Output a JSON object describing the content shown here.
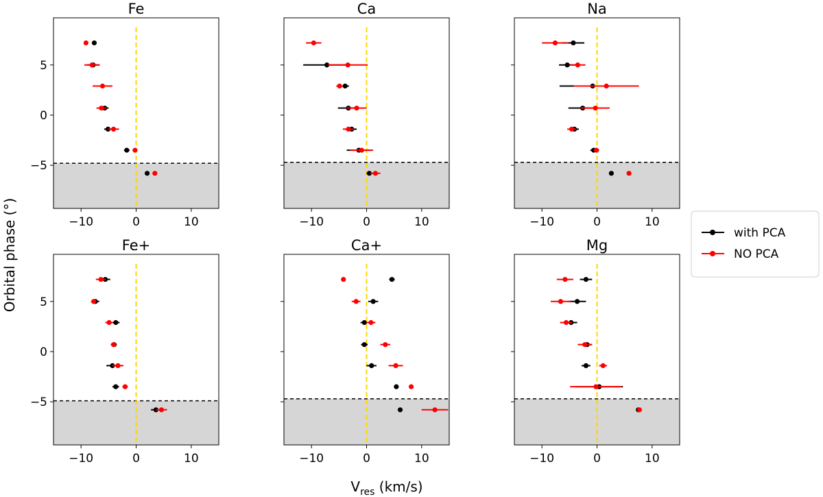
{
  "figure": {
    "ylabel": "Orbital phase (°)",
    "xlabel_main": "V",
    "xlabel_sub": "res",
    "xlabel_unit": " (km/s)"
  },
  "legend": {
    "items": [
      {
        "label": "with PCA",
        "color": "#000000"
      },
      {
        "label": "NO PCA",
        "color": "#ff0000"
      }
    ]
  },
  "chart_data": [
    {
      "type": "scatter",
      "title": "Fe",
      "xlim": [
        -15,
        15
      ],
      "ylim": [
        -9.3,
        9.7
      ],
      "xticks": [
        -10,
        0,
        10
      ],
      "yticks": [
        5,
        0,
        -5
      ],
      "vline": 0,
      "hline": -4.8,
      "series": [
        {
          "name": "with PCA",
          "color": "#000000",
          "points": [
            {
              "x": -7.6,
              "xerr": 0,
              "y": 7.2
            },
            {
              "x": -7.8,
              "xerr": 1.1,
              "y": 5.0
            },
            {
              "x": -5.7,
              "xerr": 0.7,
              "y": 0.7
            },
            {
              "x": -5.1,
              "xerr": 0.7,
              "y": -1.4
            },
            {
              "x": -1.7,
              "xerr": 0.5,
              "y": -3.5
            },
            {
              "x": 2.0,
              "xerr": 0,
              "y": -5.8
            }
          ]
        },
        {
          "name": "NO PCA",
          "color": "#ff0000",
          "points": [
            {
              "x": -9.1,
              "xerr": 0,
              "y": 7.2
            },
            {
              "x": -8.0,
              "xerr": 1.4,
              "y": 5.0
            },
            {
              "x": -6.1,
              "xerr": 1.8,
              "y": 2.9
            },
            {
              "x": -6.3,
              "xerr": 0.9,
              "y": 0.7
            },
            {
              "x": -4.1,
              "xerr": 1.0,
              "y": -1.4
            },
            {
              "x": -0.2,
              "xerr": 0.4,
              "y": -3.5
            },
            {
              "x": 3.4,
              "xerr": 0.4,
              "y": -5.8
            }
          ]
        }
      ]
    },
    {
      "type": "scatter",
      "title": "Ca",
      "xlim": [
        -15,
        15
      ],
      "ylim": [
        -9.3,
        9.7
      ],
      "xticks": [
        -10,
        0,
        10
      ],
      "yticks": [
        5,
        0,
        -5
      ],
      "vline": 0,
      "hline": -4.7,
      "series": [
        {
          "name": "with PCA",
          "color": "#000000",
          "points": [
            {
              "x": -7.2,
              "xerr": 4.3,
              "y": 5.0
            },
            {
              "x": -3.9,
              "xerr": 0.7,
              "y": 2.9
            },
            {
              "x": -3.3,
              "xerr": 1.9,
              "y": 0.7
            },
            {
              "x": -2.7,
              "xerr": 0.9,
              "y": -1.4
            },
            {
              "x": -1.4,
              "xerr": 2.2,
              "y": -3.5
            },
            {
              "x": 0.5,
              "xerr": 0.5,
              "y": -5.8
            }
          ]
        },
        {
          "name": "NO PCA",
          "color": "#ff0000",
          "points": [
            {
              "x": -9.6,
              "xerr": 1.4,
              "y": 7.2
            },
            {
              "x": -3.4,
              "xerr": 3.6,
              "y": 5.0
            },
            {
              "x": -4.9,
              "xerr": 0.6,
              "y": 2.9
            },
            {
              "x": -1.8,
              "xerr": 1.8,
              "y": 0.7
            },
            {
              "x": -3.3,
              "xerr": 1.0,
              "y": -1.4
            },
            {
              "x": -0.9,
              "xerr": 2.1,
              "y": -3.5
            },
            {
              "x": 1.6,
              "xerr": 0.9,
              "y": -5.8
            }
          ]
        }
      ]
    },
    {
      "type": "scatter",
      "title": "Na",
      "xlim": [
        -15,
        15
      ],
      "ylim": [
        -9.3,
        9.7
      ],
      "xticks": [
        -10,
        0,
        10
      ],
      "yticks": [
        5,
        0,
        -5
      ],
      "vline": 0,
      "hline": -4.7,
      "series": [
        {
          "name": "with PCA",
          "color": "#000000",
          "points": [
            {
              "x": -4.3,
              "xerr": 2.0,
              "y": 7.2
            },
            {
              "x": -5.4,
              "xerr": 1.5,
              "y": 5.0
            },
            {
              "x": -0.8,
              "xerr": 6.0,
              "y": 2.9
            },
            {
              "x": -2.6,
              "xerr": 2.6,
              "y": 0.7
            },
            {
              "x": -4.1,
              "xerr": 0.8,
              "y": -1.4
            },
            {
              "x": -0.6,
              "xerr": 0.6,
              "y": -3.5
            },
            {
              "x": 2.6,
              "xerr": 0,
              "y": -5.8
            }
          ]
        },
        {
          "name": "NO PCA",
          "color": "#ff0000",
          "points": [
            {
              "x": -7.6,
              "xerr": 2.4,
              "y": 7.2
            },
            {
              "x": -3.5,
              "xerr": 1.4,
              "y": 5.0
            },
            {
              "x": 1.7,
              "xerr": 5.9,
              "y": 2.9
            },
            {
              "x": -0.3,
              "xerr": 2.6,
              "y": 0.7
            },
            {
              "x": -4.6,
              "xerr": 0.8,
              "y": -1.4
            },
            {
              "x": -0.1,
              "xerr": 0.5,
              "y": -3.5
            },
            {
              "x": 5.8,
              "xerr": 0,
              "y": -5.8
            }
          ]
        }
      ]
    },
    {
      "type": "scatter",
      "title": "Fe+",
      "xlim": [
        -15,
        15
      ],
      "ylim": [
        -9.3,
        9.7
      ],
      "xticks": [
        -10,
        0,
        10
      ],
      "yticks": [
        5,
        0,
        -5
      ],
      "vline": 0,
      "hline": -4.9,
      "series": [
        {
          "name": "with PCA",
          "color": "#000000",
          "points": [
            {
              "x": -5.6,
              "xerr": 0.9,
              "y": 7.2
            },
            {
              "x": -7.4,
              "xerr": 0.7,
              "y": 5.0
            },
            {
              "x": -3.7,
              "xerr": 0.7,
              "y": 2.9
            },
            {
              "x": -4.0,
              "xerr": 0.5,
              "y": 0.7
            },
            {
              "x": -4.3,
              "xerr": 1.1,
              "y": -1.4
            },
            {
              "x": -3.7,
              "xerr": 0.6,
              "y": -3.5
            },
            {
              "x": 3.6,
              "xerr": 0.9,
              "y": -5.8
            }
          ]
        },
        {
          "name": "NO PCA",
          "color": "#ff0000",
          "points": [
            {
              "x": -6.4,
              "xerr": 0.9,
              "y": 7.2
            },
            {
              "x": -7.7,
              "xerr": 0.5,
              "y": 5.0
            },
            {
              "x": -4.9,
              "xerr": 0.7,
              "y": 2.9
            },
            {
              "x": -4.1,
              "xerr": 0.5,
              "y": 0.7
            },
            {
              "x": -3.3,
              "xerr": 1.0,
              "y": -1.4
            },
            {
              "x": -2.0,
              "xerr": 0.5,
              "y": -3.5
            },
            {
              "x": 4.6,
              "xerr": 1.0,
              "y": -5.8
            }
          ]
        }
      ]
    },
    {
      "type": "scatter",
      "title": "Ca+",
      "xlim": [
        -15,
        15
      ],
      "ylim": [
        -9.3,
        9.7
      ],
      "xticks": [
        -10,
        0,
        10
      ],
      "yticks": [],
      "vline": 0,
      "hline": -4.7,
      "series": [
        {
          "name": "with PCA",
          "color": "#000000",
          "points": [
            {
              "x": 4.6,
              "xerr": 0.5,
              "y": 7.2
            },
            {
              "x": 1.2,
              "xerr": 0.9,
              "y": 5.0
            },
            {
              "x": -0.4,
              "xerr": 0.7,
              "y": 2.9
            },
            {
              "x": -0.4,
              "xerr": 0.6,
              "y": 0.7
            },
            {
              "x": 0.9,
              "xerr": 0.9,
              "y": -1.4
            },
            {
              "x": 5.4,
              "xerr": 0,
              "y": -3.5
            },
            {
              "x": 6.1,
              "xerr": 0,
              "y": -5.8
            }
          ]
        },
        {
          "name": "NO PCA",
          "color": "#ff0000",
          "points": [
            {
              "x": -4.2,
              "xerr": 0,
              "y": 7.2
            },
            {
              "x": -1.9,
              "xerr": 0.8,
              "y": 5.0
            },
            {
              "x": 0.8,
              "xerr": 0.8,
              "y": 2.9
            },
            {
              "x": 3.4,
              "xerr": 0.9,
              "y": 0.7
            },
            {
              "x": 5.3,
              "xerr": 1.3,
              "y": -1.4
            },
            {
              "x": 8.1,
              "xerr": 0,
              "y": -3.5
            },
            {
              "x": 12.4,
              "xerr": 2.4,
              "y": -5.8
            }
          ]
        }
      ]
    },
    {
      "type": "scatter",
      "title": "Mg",
      "xlim": [
        -15,
        15
      ],
      "ylim": [
        -9.3,
        9.7
      ],
      "xticks": [
        -10,
        0,
        10
      ],
      "yticks": [],
      "vline": 0,
      "hline": -4.7,
      "series": [
        {
          "name": "with PCA",
          "color": "#000000",
          "points": [
            {
              "x": -2.0,
              "xerr": 1.1,
              "y": 7.2
            },
            {
              "x": -3.6,
              "xerr": 1.6,
              "y": 5.0
            },
            {
              "x": -4.7,
              "xerr": 1.1,
              "y": 2.9
            },
            {
              "x": -1.8,
              "xerr": 0.9,
              "y": 0.7
            },
            {
              "x": -2.0,
              "xerr": 0.8,
              "y": -1.4
            },
            {
              "x": 0.4,
              "xerr": 4.3,
              "y": -3.5
            },
            {
              "x": 7.5,
              "xerr": 0.4,
              "y": -5.8
            }
          ]
        },
        {
          "name": "NO PCA",
          "color": "#ff0000",
          "points": [
            {
              "x": -5.8,
              "xerr": 1.5,
              "y": 7.2
            },
            {
              "x": -6.6,
              "xerr": 1.8,
              "y": 5.0
            },
            {
              "x": -5.6,
              "xerr": 1.1,
              "y": 2.9
            },
            {
              "x": -2.2,
              "xerr": 1.3,
              "y": 0.7
            },
            {
              "x": 1.1,
              "xerr": 0.7,
              "y": -1.4
            },
            {
              "x": -0.2,
              "xerr": 4.7,
              "y": -3.5
            },
            {
              "x": 7.7,
              "xerr": 0.3,
              "y": -5.8
            }
          ]
        }
      ]
    }
  ]
}
